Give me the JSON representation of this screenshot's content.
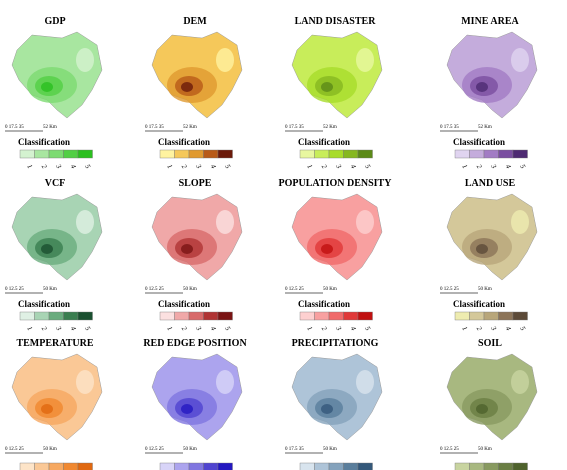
{
  "panels": [
    {
      "title": "GDP",
      "scale_start": "0 17.5 35",
      "scale_end": "52 Km",
      "legend_title": "Classification",
      "colors": [
        "#d4f2d0",
        "#a8e6a0",
        "#7ddb72",
        "#52cf45",
        "#2bbf1f"
      ],
      "class_labels": [
        "1",
        "2",
        "3",
        "4",
        "5"
      ]
    },
    {
      "title": "DEM",
      "scale_start": "0 17.5 35",
      "scale_end": "52 Km",
      "legend_title": "Classification",
      "colors": [
        "#fff3a0",
        "#f5c85a",
        "#e09a30",
        "#b85a18",
        "#6b1a0a"
      ],
      "class_labels": [
        "1",
        "2",
        "3",
        "4",
        "5"
      ]
    },
    {
      "title": "LAND DISASTER",
      "scale_start": "0 17.5 35",
      "scale_end": "52 Km",
      "legend_title": "Classification",
      "colors": [
        "#e8f7a0",
        "#c8ed5a",
        "#a8dc2a",
        "#86b820",
        "#5c8a18"
      ],
      "class_labels": [
        "1",
        "2",
        "3",
        "4",
        "5"
      ]
    },
    {
      "title": "MINE AREA",
      "scale_start": "0 17.5 35",
      "scale_end": "52 Km",
      "legend_title": "Classification",
      "colors": [
        "#e0d4f0",
        "#c4acdc",
        "#a27cc4",
        "#7a4ea0",
        "#4e2a72"
      ],
      "class_labels": [
        "1",
        "2",
        "3",
        "4",
        "5"
      ]
    },
    {
      "title": "VCF",
      "scale_start": "0 12.5 25",
      "scale_end": "50 Km",
      "legend_title": "Classification",
      "colors": [
        "#dff0e4",
        "#a8d4b4",
        "#6aac7e",
        "#3a7e50",
        "#1a5030"
      ],
      "class_labels": [
        "1",
        "2",
        "3",
        "4",
        "5"
      ]
    },
    {
      "title": "SLOPE",
      "scale_start": "0 12.5 25",
      "scale_end": "50 Km",
      "legend_title": "Classification",
      "colors": [
        "#fbe0e0",
        "#f0a8a8",
        "#d86a6a",
        "#b03434",
        "#7a1414"
      ],
      "class_labels": [
        "1",
        "2",
        "3",
        "4",
        "5"
      ]
    },
    {
      "title": "POPULATION DENSITY",
      "scale_start": "0 12.5 25",
      "scale_end": "50 Km",
      "legend_title": "Classification",
      "colors": [
        "#fdd0d0",
        "#f8a0a0",
        "#f06a6a",
        "#e03838",
        "#c01010"
      ],
      "class_labels": [
        "1",
        "2",
        "3",
        "4",
        "5"
      ]
    },
    {
      "title": "LAND USE",
      "scale_start": "0 12.5 25",
      "scale_end": "50 Km",
      "legend_title": "Classification",
      "colors": [
        "#eeecb0",
        "#d4c89a",
        "#b8a67a",
        "#8c7458",
        "#5c4a38"
      ],
      "class_labels": [
        "1",
        "2",
        "3",
        "4",
        "5"
      ]
    },
    {
      "title": "TEMPERATURE",
      "scale_start": "0 12.5 25",
      "scale_end": "50 Km",
      "colors": [
        "#fde4c8",
        "#fac896",
        "#f6a860",
        "#f08830",
        "#e06810"
      ]
    },
    {
      "title": "RED EDGE POSITION",
      "scale_start": "0 12.5 25",
      "scale_end": "50 Km",
      "colors": [
        "#d8d4f8",
        "#aca4ee",
        "#8076e0",
        "#5044d0",
        "#2418c0"
      ]
    },
    {
      "title": "PRECIPITATIONG",
      "scale_start": "0 17.5 35",
      "scale_end": "50 Km",
      "colors": [
        "#d8e4ee",
        "#aec4d8",
        "#84a2bc",
        "#5a7e9c",
        "#34587a"
      ]
    },
    {
      "title": "SOIL",
      "scale_start": "0 12.5 25",
      "scale_end": "50 Km",
      "colors": [
        "#c8d4a0",
        "#a8b880",
        "#889a60",
        "#6a7e44",
        "#4e622c"
      ]
    }
  ]
}
